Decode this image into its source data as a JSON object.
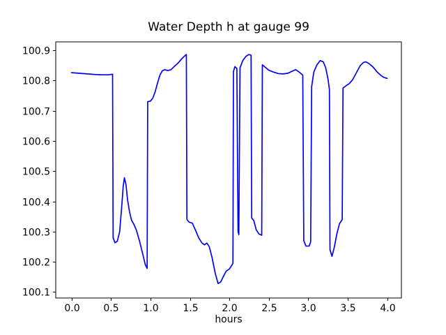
{
  "figure": {
    "background": "#ffffff",
    "spine_color": "#000000",
    "text_color": "#000000"
  },
  "chart_data": {
    "type": "line",
    "title": "Water Depth h at gauge 99",
    "xlabel": "hours",
    "ylabel": "",
    "grid": false,
    "legend": null,
    "line_color": "#0000ff",
    "xlim": [
      -0.2,
      4.18
    ],
    "ylim": [
      100.08,
      100.928
    ],
    "xticks": [
      {
        "v": 0.0,
        "label": "0.0"
      },
      {
        "v": 0.5,
        "label": "0.5"
      },
      {
        "v": 1.0,
        "label": "1.0"
      },
      {
        "v": 1.5,
        "label": "1.5"
      },
      {
        "v": 2.0,
        "label": "2.0"
      },
      {
        "v": 2.5,
        "label": "2.5"
      },
      {
        "v": 3.0,
        "label": "3.0"
      },
      {
        "v": 3.5,
        "label": "3.5"
      },
      {
        "v": 4.0,
        "label": "4.0"
      }
    ],
    "yticks": [
      {
        "v": 100.1,
        "label": "100.1"
      },
      {
        "v": 100.2,
        "label": "100.2"
      },
      {
        "v": 100.3,
        "label": "100.3"
      },
      {
        "v": 100.4,
        "label": "100.4"
      },
      {
        "v": 100.5,
        "label": "100.5"
      },
      {
        "v": 100.6,
        "label": "100.6"
      },
      {
        "v": 100.7,
        "label": "100.7"
      },
      {
        "v": 100.8,
        "label": "100.8"
      },
      {
        "v": 100.9,
        "label": "100.9"
      }
    ],
    "series": [
      {
        "name": "h",
        "points": [
          [
            0.0,
            100.826
          ],
          [
            0.1,
            100.824
          ],
          [
            0.2,
            100.822
          ],
          [
            0.3,
            100.82
          ],
          [
            0.4,
            100.819
          ],
          [
            0.47,
            100.819
          ],
          [
            0.52,
            100.821
          ],
          [
            0.527,
            100.28
          ],
          [
            0.55,
            100.263
          ],
          [
            0.58,
            100.268
          ],
          [
            0.61,
            100.3
          ],
          [
            0.635,
            100.38
          ],
          [
            0.655,
            100.45
          ],
          [
            0.67,
            100.478
          ],
          [
            0.69,
            100.455
          ],
          [
            0.71,
            100.405
          ],
          [
            0.735,
            100.365
          ],
          [
            0.76,
            100.338
          ],
          [
            0.79,
            100.324
          ],
          [
            0.82,
            100.306
          ],
          [
            0.86,
            100.27
          ],
          [
            0.9,
            100.228
          ],
          [
            0.935,
            100.19
          ],
          [
            0.958,
            100.178
          ],
          [
            0.965,
            100.73
          ],
          [
            1.0,
            100.732
          ],
          [
            1.03,
            100.742
          ],
          [
            1.06,
            100.763
          ],
          [
            1.09,
            100.792
          ],
          [
            1.12,
            100.818
          ],
          [
            1.15,
            100.832
          ],
          [
            1.18,
            100.836
          ],
          [
            1.22,
            100.833
          ],
          [
            1.26,
            100.836
          ],
          [
            1.3,
            100.846
          ],
          [
            1.35,
            100.858
          ],
          [
            1.4,
            100.873
          ],
          [
            1.44,
            100.883
          ],
          [
            1.455,
            100.886
          ],
          [
            1.462,
            100.34
          ],
          [
            1.49,
            100.331
          ],
          [
            1.53,
            100.328
          ],
          [
            1.57,
            100.305
          ],
          [
            1.61,
            100.28
          ],
          [
            1.65,
            100.263
          ],
          [
            1.685,
            100.256
          ],
          [
            1.715,
            100.262
          ],
          [
            1.745,
            100.25
          ],
          [
            1.78,
            100.215
          ],
          [
            1.82,
            100.163
          ],
          [
            1.857,
            100.128
          ],
          [
            1.89,
            100.133
          ],
          [
            1.925,
            100.152
          ],
          [
            1.96,
            100.169
          ],
          [
            2.0,
            100.176
          ],
          [
            2.035,
            100.19
          ],
          [
            2.045,
            100.195
          ],
          [
            2.052,
            100.83
          ],
          [
            2.07,
            100.846
          ],
          [
            2.095,
            100.84
          ],
          [
            2.11,
            100.3
          ],
          [
            2.12,
            100.29
          ],
          [
            2.135,
            100.842
          ],
          [
            2.17,
            100.866
          ],
          [
            2.21,
            100.88
          ],
          [
            2.245,
            100.886
          ],
          [
            2.275,
            100.884
          ],
          [
            2.283,
            100.345
          ],
          [
            2.31,
            100.336
          ],
          [
            2.34,
            100.306
          ],
          [
            2.375,
            100.292
          ],
          [
            2.41,
            100.288
          ],
          [
            2.418,
            100.852
          ],
          [
            2.45,
            100.845
          ],
          [
            2.5,
            100.834
          ],
          [
            2.56,
            100.828
          ],
          [
            2.62,
            100.823
          ],
          [
            2.68,
            100.822
          ],
          [
            2.74,
            100.824
          ],
          [
            2.79,
            100.83
          ],
          [
            2.84,
            100.836
          ],
          [
            2.89,
            100.827
          ],
          [
            2.93,
            100.818
          ],
          [
            2.943,
            100.27
          ],
          [
            2.97,
            100.252
          ],
          [
            3.01,
            100.252
          ],
          [
            3.03,
            100.265
          ],
          [
            3.043,
            100.78
          ],
          [
            3.07,
            100.828
          ],
          [
            3.11,
            100.852
          ],
          [
            3.15,
            100.866
          ],
          [
            3.19,
            100.862
          ],
          [
            3.22,
            100.843
          ],
          [
            3.25,
            100.805
          ],
          [
            3.268,
            100.77
          ],
          [
            3.275,
            100.24
          ],
          [
            3.3,
            100.218
          ],
          [
            3.33,
            100.248
          ],
          [
            3.36,
            100.29
          ],
          [
            3.395,
            100.326
          ],
          [
            3.43,
            100.34
          ],
          [
            3.44,
            100.775
          ],
          [
            3.48,
            100.783
          ],
          [
            3.52,
            100.79
          ],
          [
            3.56,
            100.802
          ],
          [
            3.61,
            100.826
          ],
          [
            3.66,
            100.85
          ],
          [
            3.7,
            100.86
          ],
          [
            3.73,
            100.862
          ],
          [
            3.77,
            100.856
          ],
          [
            3.82,
            100.845
          ],
          [
            3.87,
            100.829
          ],
          [
            3.92,
            100.817
          ],
          [
            3.96,
            100.81
          ],
          [
            4.0,
            100.807
          ]
        ]
      }
    ]
  }
}
